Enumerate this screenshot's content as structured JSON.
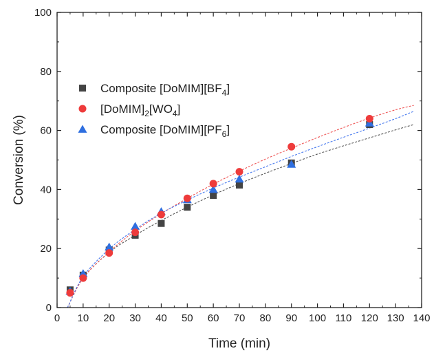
{
  "chart_data": {
    "type": "scatter",
    "title": "",
    "xlabel": "Time (min)",
    "ylabel": "Conversion (%)",
    "xlim": [
      0,
      140
    ],
    "ylim": [
      0,
      100
    ],
    "x_ticks": [
      0,
      10,
      20,
      30,
      40,
      50,
      60,
      70,
      80,
      90,
      100,
      110,
      120,
      130,
      140
    ],
    "y_ticks": [
      0,
      20,
      40,
      60,
      80,
      100
    ],
    "grid": false,
    "legend_position": "upper-left",
    "series": [
      {
        "name_parts": [
          "Composite [DoMIM][BF",
          "4",
          "]"
        ],
        "marker": "square",
        "color": "#444444",
        "fit_color": "#555555",
        "x": [
          5,
          10,
          20,
          30,
          40,
          50,
          60,
          70,
          90,
          120
        ],
        "y": [
          6.0,
          11.0,
          19.5,
          24.5,
          28.5,
          34.0,
          38.0,
          41.5,
          49.0,
          62.0
        ],
        "fit": [
          [
            4,
            0
          ],
          [
            10,
            10
          ],
          [
            20,
            18.7
          ],
          [
            30,
            24.5
          ],
          [
            40,
            29.5
          ],
          [
            50,
            34.0
          ],
          [
            60,
            38.2
          ],
          [
            70,
            42.0
          ],
          [
            80,
            45.5
          ],
          [
            90,
            48.8
          ],
          [
            100,
            52.0
          ],
          [
            110,
            54.8
          ],
          [
            120,
            57.5
          ],
          [
            130,
            60.2
          ],
          [
            137,
            62.0
          ]
        ]
      },
      {
        "name_parts": [
          "[DoMIM]",
          "2",
          "[WO",
          "4",
          "]"
        ],
        "marker": "circle",
        "color": "#ee3b3b",
        "fit_color": "#ee5555",
        "x": [
          5,
          10,
          20,
          30,
          40,
          50,
          60,
          70,
          90,
          120
        ],
        "y": [
          5.0,
          10.0,
          18.5,
          25.5,
          31.5,
          37.0,
          42.0,
          46.0,
          54.5,
          64.0
        ],
        "fit": [
          [
            4,
            0
          ],
          [
            10,
            10
          ],
          [
            20,
            18.9
          ],
          [
            30,
            26.0
          ],
          [
            40,
            31.8
          ],
          [
            50,
            37.0
          ],
          [
            60,
            41.8
          ],
          [
            70,
            46.2
          ],
          [
            80,
            50.3
          ],
          [
            90,
            54.0
          ],
          [
            100,
            57.6
          ],
          [
            110,
            61.0
          ],
          [
            120,
            64.2
          ],
          [
            130,
            67.0
          ],
          [
            137,
            68.5
          ]
        ]
      },
      {
        "name_parts": [
          "Composite [DoMIM][PF",
          "6",
          "]"
        ],
        "marker": "triangle",
        "color": "#2f6fe0",
        "fit_color": "#4477ee",
        "x": [
          5,
          10,
          20,
          30,
          40,
          50,
          60,
          70,
          90,
          120
        ],
        "y": [
          5.5,
          11.5,
          20.5,
          27.5,
          32.5,
          36.5,
          40.0,
          43.5,
          48.5,
          62.5
        ],
        "fit": [
          [
            4,
            0
          ],
          [
            10,
            10.5
          ],
          [
            20,
            19.8
          ],
          [
            30,
            26.5
          ],
          [
            40,
            32.0
          ],
          [
            50,
            36.4
          ],
          [
            60,
            40.5
          ],
          [
            70,
            44.2
          ],
          [
            80,
            47.7
          ],
          [
            90,
            51.2
          ],
          [
            100,
            54.5
          ],
          [
            110,
            57.7
          ],
          [
            120,
            60.8
          ],
          [
            130,
            64.0
          ],
          [
            137,
            66.5
          ]
        ]
      }
    ]
  }
}
